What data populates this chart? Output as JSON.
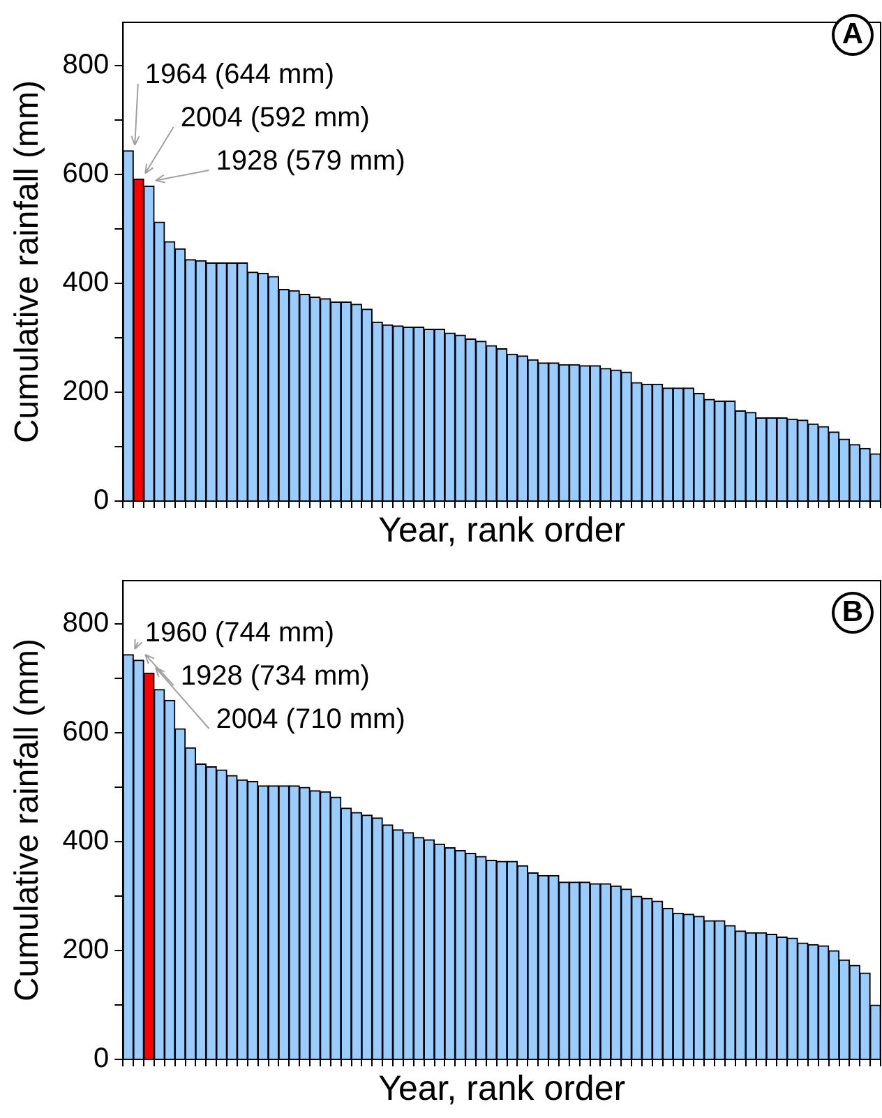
{
  "chart_data": [
    {
      "type": "bar",
      "title": "A",
      "xlabel": "Year, rank order",
      "ylabel": "Cumulative rainfall (mm)",
      "categories": [
        null,
        null,
        null,
        null,
        null,
        null,
        null,
        null,
        null,
        null,
        null,
        null,
        null,
        null,
        null,
        null,
        null,
        null,
        null,
        null,
        null,
        null,
        null,
        null,
        null,
        null,
        null,
        null,
        null,
        null,
        null,
        null,
        null,
        null,
        null,
        null,
        null,
        null,
        null,
        null,
        null,
        null,
        null,
        null,
        null,
        null,
        null,
        null,
        null,
        null,
        null,
        null,
        null,
        null,
        null,
        null,
        null,
        null,
        null,
        null,
        null,
        null,
        null,
        null,
        null,
        null,
        null,
        null,
        null,
        null,
        null,
        null,
        null
      ],
      "values": [
        644,
        592,
        579,
        513,
        477,
        464,
        444,
        442,
        438,
        438,
        438,
        438,
        421,
        419,
        413,
        389,
        387,
        380,
        375,
        372,
        366,
        366,
        362,
        353,
        329,
        324,
        322,
        320,
        320,
        316,
        316,
        309,
        305,
        298,
        294,
        286,
        280,
        270,
        267,
        260,
        254,
        254,
        251,
        251,
        249,
        249,
        244,
        241,
        237,
        218,
        215,
        215,
        208,
        208,
        208,
        198,
        187,
        184,
        184,
        166,
        163,
        153,
        153,
        153,
        151,
        149,
        142,
        137,
        127,
        114,
        104,
        97,
        87
      ],
      "colors": [
        "#99ccff",
        "#ff0000",
        "#99ccff",
        "#99ccff",
        "#99ccff",
        "#99ccff",
        "#99ccff",
        "#99ccff",
        "#99ccff",
        "#99ccff",
        "#99ccff",
        "#99ccff",
        "#99ccff",
        "#99ccff",
        "#99ccff",
        "#99ccff",
        "#99ccff",
        "#99ccff",
        "#99ccff",
        "#99ccff",
        "#99ccff",
        "#99ccff",
        "#99ccff",
        "#99ccff",
        "#99ccff",
        "#99ccff",
        "#99ccff",
        "#99ccff",
        "#99ccff",
        "#99ccff",
        "#99ccff",
        "#99ccff",
        "#99ccff",
        "#99ccff",
        "#99ccff",
        "#99ccff",
        "#99ccff",
        "#99ccff",
        "#99ccff",
        "#99ccff",
        "#99ccff",
        "#99ccff",
        "#99ccff",
        "#99ccff",
        "#99ccff",
        "#99ccff",
        "#99ccff",
        "#99ccff",
        "#99ccff",
        "#99ccff",
        "#99ccff",
        "#99ccff",
        "#99ccff",
        "#99ccff",
        "#99ccff",
        "#99ccff",
        "#99ccff",
        "#99ccff",
        "#99ccff",
        "#99ccff",
        "#99ccff",
        "#99ccff",
        "#99ccff",
        "#99ccff",
        "#99ccff",
        "#99ccff",
        "#99ccff",
        "#99ccff",
        "#99ccff",
        "#99ccff",
        "#99ccff",
        "#99ccff",
        "#99ccff"
      ],
      "ylim": [
        0,
        880
      ],
      "yticks": [
        0,
        {
          "value": 100,
          "label": null
        },
        200,
        {
          "value": 300,
          "label": null
        },
        400,
        {
          "value": 500,
          "label": null
        },
        600,
        {
          "value": 700,
          "label": null
        },
        800
      ],
      "tick_labels": "y",
      "annotations": [
        "1964 (644 mm)",
        "2004 (592 mm)",
        "1928 (579 mm)"
      ]
    },
    {
      "type": "bar",
      "title": "B",
      "xlabel": "Year, rank order",
      "ylabel": "Cumulative rainfall (mm)",
      "categories": [
        null,
        null,
        null,
        null,
        null,
        null,
        null,
        null,
        null,
        null,
        null,
        null,
        null,
        null,
        null,
        null,
        null,
        null,
        null,
        null,
        null,
        null,
        null,
        null,
        null,
        null,
        null,
        null,
        null,
        null,
        null,
        null,
        null,
        null,
        null,
        null,
        null,
        null,
        null,
        null,
        null,
        null,
        null,
        null,
        null,
        null,
        null,
        null,
        null,
        null,
        null,
        null,
        null,
        null,
        null,
        null,
        null,
        null,
        null,
        null,
        null,
        null,
        null,
        null,
        null,
        null,
        null,
        null,
        null,
        null,
        null,
        null,
        null
      ],
      "values": [
        744,
        734,
        710,
        680,
        660,
        608,
        573,
        543,
        538,
        532,
        522,
        514,
        511,
        503,
        503,
        503,
        503,
        500,
        494,
        492,
        482,
        462,
        454,
        449,
        444,
        431,
        422,
        417,
        408,
        404,
        396,
        389,
        384,
        379,
        373,
        366,
        364,
        364,
        356,
        343,
        338,
        338,
        326,
        326,
        326,
        323,
        323,
        319,
        313,
        300,
        296,
        291,
        278,
        269,
        267,
        263,
        255,
        255,
        246,
        236,
        233,
        233,
        230,
        225,
        223,
        214,
        211,
        209,
        200,
        183,
        173,
        159,
        100
      ],
      "colors": [
        "#99ccff",
        "#99ccff",
        "#ff0000",
        "#99ccff",
        "#99ccff",
        "#99ccff",
        "#99ccff",
        "#99ccff",
        "#99ccff",
        "#99ccff",
        "#99ccff",
        "#99ccff",
        "#99ccff",
        "#99ccff",
        "#99ccff",
        "#99ccff",
        "#99ccff",
        "#99ccff",
        "#99ccff",
        "#99ccff",
        "#99ccff",
        "#99ccff",
        "#99ccff",
        "#99ccff",
        "#99ccff",
        "#99ccff",
        "#99ccff",
        "#99ccff",
        "#99ccff",
        "#99ccff",
        "#99ccff",
        "#99ccff",
        "#99ccff",
        "#99ccff",
        "#99ccff",
        "#99ccff",
        "#99ccff",
        "#99ccff",
        "#99ccff",
        "#99ccff",
        "#99ccff",
        "#99ccff",
        "#99ccff",
        "#99ccff",
        "#99ccff",
        "#99ccff",
        "#99ccff",
        "#99ccff",
        "#99ccff",
        "#99ccff",
        "#99ccff",
        "#99ccff",
        "#99ccff",
        "#99ccff",
        "#99ccff",
        "#99ccff",
        "#99ccff",
        "#99ccff",
        "#99ccff",
        "#99ccff",
        "#99ccff",
        "#99ccff",
        "#99ccff",
        "#99ccff",
        "#99ccff",
        "#99ccff",
        "#99ccff",
        "#99ccff",
        "#99ccff",
        "#99ccff",
        "#99ccff",
        "#99ccff",
        "#99ccff"
      ],
      "ylim": [
        0,
        880
      ],
      "yticks": [
        0,
        {
          "value": 100,
          "label": null
        },
        200,
        {
          "value": 300,
          "label": null
        },
        400,
        {
          "value": 500,
          "label": null
        },
        600,
        {
          "value": 700,
          "label": null
        },
        800
      ],
      "tick_labels": "y",
      "annotations": [
        "1960 (744 mm)",
        "1928 (734 mm)",
        "2004 (710 mm)"
      ]
    }
  ]
}
